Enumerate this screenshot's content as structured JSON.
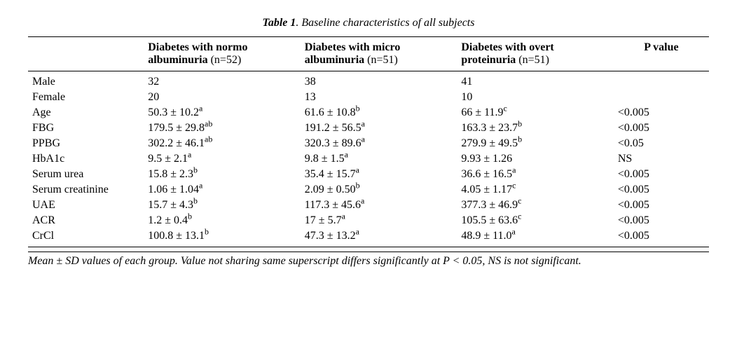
{
  "caption": {
    "label": "Table 1",
    "title": ". Baseline characteristics of all subjects"
  },
  "columns": [
    {
      "bold": "Diabetes with normo",
      "line2_bold": "albuminuria",
      "n": " (n=52)"
    },
    {
      "bold": "Diabetes with micro",
      "line2_bold": "albuminuria",
      "n": " (n=51)"
    },
    {
      "bold": "Diabetes with overt",
      "line2_bold": "proteinuria",
      "n": " (n=51)"
    }
  ],
  "pvalue_header": "P value",
  "rows": [
    {
      "label": "Male",
      "g1": {
        "v": "32"
      },
      "g2": {
        "v": "38"
      },
      "g3": {
        "v": "41"
      },
      "p": ""
    },
    {
      "label": "Female",
      "g1": {
        "v": "20"
      },
      "g2": {
        "v": "13"
      },
      "g3": {
        "v": "10"
      },
      "p": ""
    },
    {
      "label": "Age",
      "g1": {
        "v": "50.3 ± 10.2",
        "s": "a"
      },
      "g2": {
        "v": "61.6 ± 10.8",
        "s": "b"
      },
      "g3": {
        "v": "66 ± 11.9",
        "s": "c"
      },
      "p": "<0.005"
    },
    {
      "label": "FBG",
      "g1": {
        "v": "179.5 ± 29.8",
        "s": "ab"
      },
      "g2": {
        "v": "191.2 ± 56.5",
        "s": "a"
      },
      "g3": {
        "v": "163.3 ± 23.7",
        "s": "b"
      },
      "p": "<0.005"
    },
    {
      "label": "PPBG",
      "g1": {
        "v": "302.2 ± 46.1",
        "s": "ab"
      },
      "g2": {
        "v": "320.3 ± 89.6",
        "s": "a"
      },
      "g3": {
        "v": "279.9 ± 49.5",
        "s": "b"
      },
      "p": "<0.05"
    },
    {
      "label": "HbA1c",
      "g1": {
        "v": "9.5 ± 2.1",
        "s": "a"
      },
      "g2": {
        "v": "9.8 ± 1.5",
        "s": "a"
      },
      "g3": {
        "v": "9.93 ± 1.26"
      },
      "p": "NS"
    },
    {
      "label": "Serum urea",
      "g1": {
        "v": "15.8 ± 2.3",
        "s": "b"
      },
      "g2": {
        "v": "35.4 ± 15.7",
        "s": "a"
      },
      "g3": {
        "v": "36.6 ± 16.5",
        "s": "a"
      },
      "p": "<0.005"
    },
    {
      "label": "Serum creatinine",
      "g1": {
        "v": "1.06 ± 1.04",
        "s": "a"
      },
      "g2": {
        "v": "2.09 ± 0.50",
        "s": "b"
      },
      "g3": {
        "v": "4.05 ± 1.17",
        "s": "c"
      },
      "p": "<0.005"
    },
    {
      "label": "UAE",
      "g1": {
        "v": "15.7 ± 4.3",
        "s": "b"
      },
      "g2": {
        "v": "117.3 ± 45.6",
        "s": "a"
      },
      "g3": {
        "v": "377.3 ± 46.9",
        "s": "c"
      },
      "p": "<0.005"
    },
    {
      "label": "ACR",
      "g1": {
        "v": "1.2 ± 0.4",
        "s": "b"
      },
      "g2": {
        "v": "17 ± 5.7",
        "s": "a"
      },
      "g3": {
        "v": "105.5 ± 63.6",
        "s": "c"
      },
      "p": "<0.005"
    },
    {
      "label": "CrCl",
      "g1": {
        "v": "100.8 ± 13.1",
        "s": "b"
      },
      "g2": {
        "v": "47.3 ± 13.2",
        "s": "a"
      },
      "g3": {
        "v": "48.9 ± 11.0",
        "s": "a"
      },
      "p": "<0.005"
    }
  ],
  "footnote": "Mean ± SD values of each group. Value not sharing same superscript differs significantly at P < 0.05, NS is not significant."
}
